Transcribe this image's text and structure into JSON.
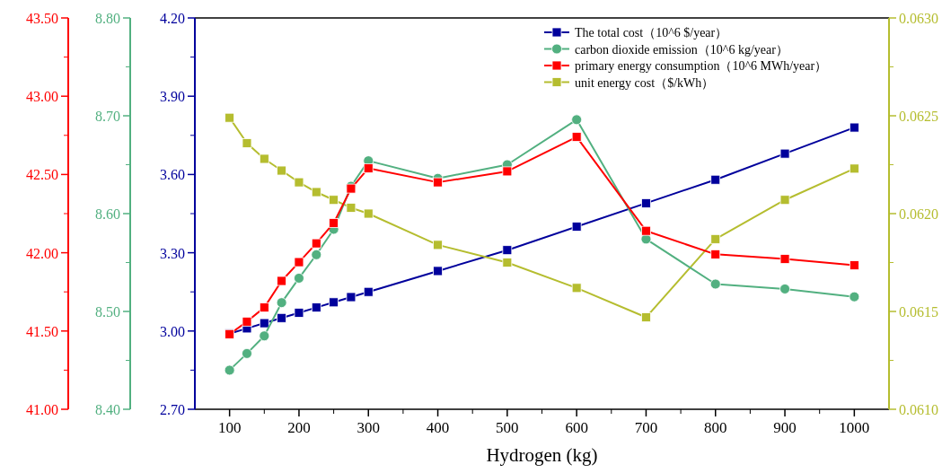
{
  "chart_data": [
    {
      "type": "line",
      "xlabel": "Hydrogen (kg)",
      "x": [
        100,
        125,
        150,
        175,
        200,
        225,
        250,
        275,
        300,
        400,
        500,
        600,
        700,
        800,
        900,
        1000
      ],
      "xlim": [
        50,
        1050
      ],
      "xticks": [
        100,
        200,
        300,
        400,
        500,
        600,
        700,
        800,
        900,
        1000
      ],
      "ylim": [
        2.7,
        4.2
      ],
      "yticks": [
        {
          "value": 2.7,
          "label": "2.70"
        },
        {
          "value": 3.0,
          "label": "3.00"
        },
        {
          "value": 3.3,
          "label": "3.30"
        },
        {
          "value": 3.6,
          "label": "3.60"
        },
        {
          "value": 3.9,
          "label": "3.90"
        },
        {
          "value": 4.2,
          "label": "4.20"
        }
      ],
      "y2lim": [
        0.061,
        0.063
      ],
      "y2ticks": [
        {
          "value": 0.061,
          "label": "0.0610"
        },
        {
          "value": 0.0615,
          "label": "0.0615"
        },
        {
          "value": 0.062,
          "label": "0.0620"
        },
        {
          "value": 0.0625,
          "label": "0.0625"
        },
        {
          "value": 0.063,
          "label": "0.0630"
        }
      ],
      "legend": "top right",
      "line_style": "solid",
      "series": [
        {
          "name": "The total cost（10^6 $/year）",
          "color": "#00009c",
          "marker": "square",
          "values": [
            2.99,
            3.01,
            3.03,
            3.05,
            3.07,
            3.09,
            3.11,
            3.13,
            3.15,
            3.23,
            3.31,
            3.4,
            3.49,
            3.58,
            3.68,
            3.78
          ]
        },
        {
          "name": "unit energy cost（$/kWh）",
          "color": "#b5bd2f",
          "marker": "square",
          "axis": "y2",
          "values": [
            0.06249,
            0.06236,
            0.06228,
            0.06222,
            0.06216,
            0.06211,
            0.06207,
            0.06203,
            0.062,
            0.06184,
            0.06175,
            0.06162,
            0.06147,
            0.06187,
            0.06207,
            0.06223
          ]
        }
      ]
    },
    {
      "type": "line",
      "x": [
        100,
        125,
        150,
        175,
        200,
        225,
        250,
        275,
        300,
        400,
        500,
        600,
        700,
        800,
        900,
        1000
      ],
      "xlim": [
        50,
        1050
      ],
      "tick_labels": "y",
      "ylim": [
        8.4,
        8.8
      ],
      "yticks": [
        {
          "value": 8.4,
          "label": "8.40"
        },
        {
          "value": 8.5,
          "label": "8.50"
        },
        {
          "value": 8.6,
          "label": "8.60"
        },
        {
          "value": 8.7,
          "label": "8.70"
        },
        {
          "value": 8.8,
          "label": "8.80"
        }
      ],
      "legend": "top right",
      "line_style": "solid",
      "series": [
        {
          "name": "carbon dioxide emission（10^6 kg/year）",
          "color": "#52b080",
          "marker": "circle",
          "values": [
            8.44,
            8.457,
            8.475,
            8.509,
            8.534,
            8.558,
            8.584,
            8.628,
            8.654,
            8.636,
            8.65,
            8.696,
            8.574,
            8.528,
            8.523,
            8.515
          ]
        }
      ]
    },
    {
      "type": "line",
      "x": [
        100,
        125,
        150,
        175,
        200,
        225,
        250,
        275,
        300,
        400,
        500,
        600,
        700,
        800,
        900,
        1000
      ],
      "xlim": [
        50,
        1050
      ],
      "tick_labels": "y",
      "ylim": [
        41.0,
        43.5
      ],
      "yticks": [
        {
          "value": 41.0,
          "label": "41.00"
        },
        {
          "value": 41.5,
          "label": "41.50"
        },
        {
          "value": 42.0,
          "label": "42.00"
        },
        {
          "value": 42.5,
          "label": "42.50"
        },
        {
          "value": 43.0,
          "label": "43.00"
        },
        {
          "value": 43.5,
          "label": "43.50"
        }
      ],
      "legend": "top right",
      "line_style": "solid",
      "series": [
        {
          "name": "primary energy consumption（10^6 MWh/year）",
          "color": "#ff0000",
          "marker": "square",
          "values": [
            41.48,
            41.56,
            41.65,
            41.82,
            41.94,
            42.06,
            42.19,
            42.41,
            42.54,
            42.45,
            42.52,
            42.74,
            42.14,
            41.99,
            41.96,
            41.92
          ]
        }
      ]
    }
  ]
}
